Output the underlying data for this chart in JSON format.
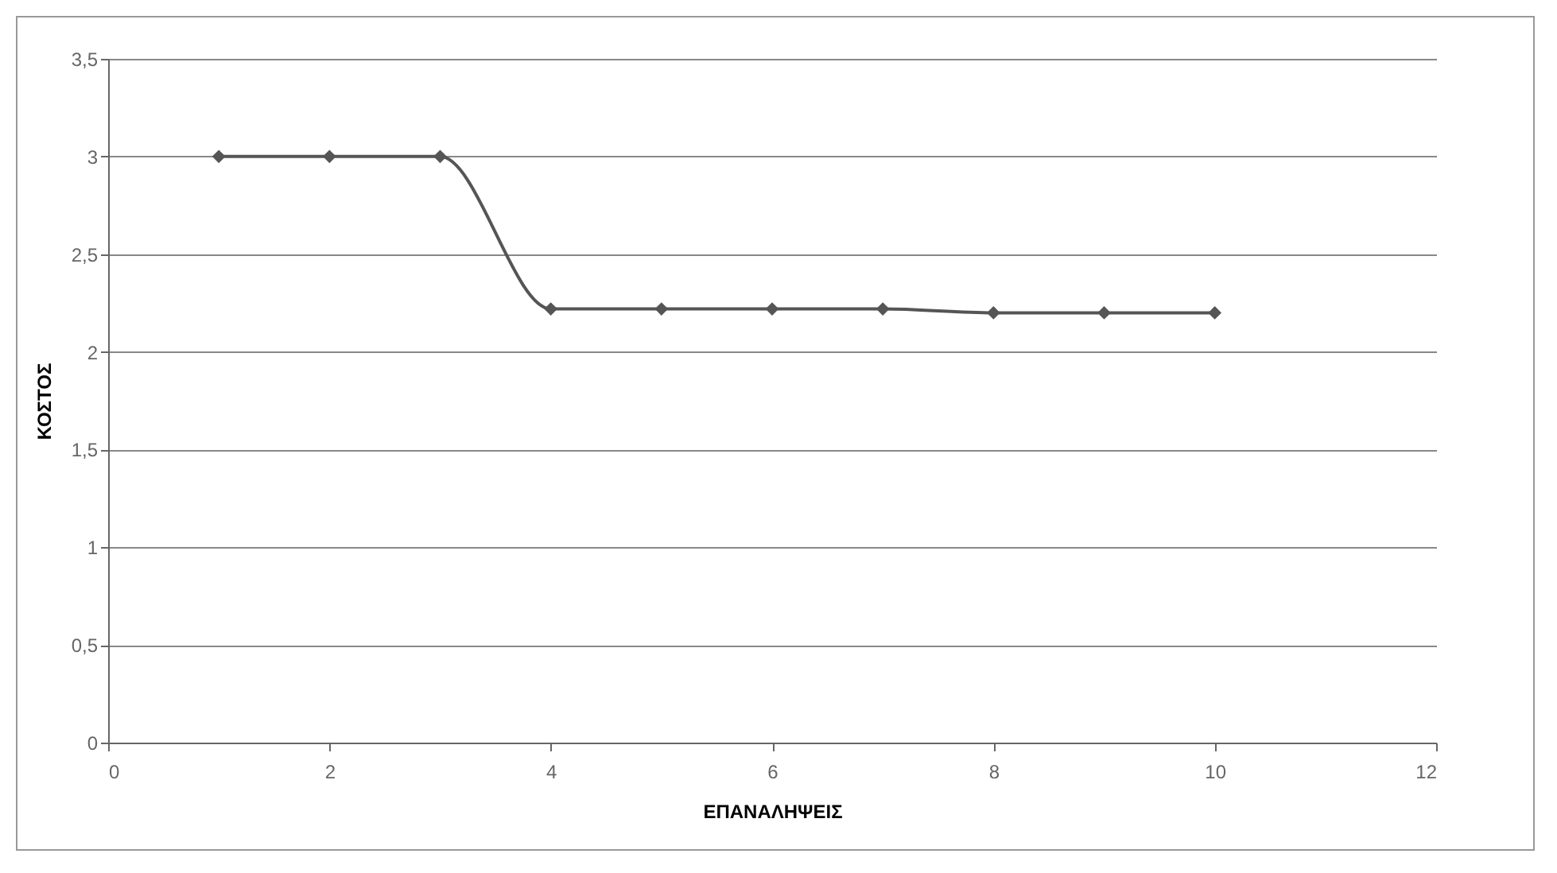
{
  "chart_data": {
    "type": "line",
    "xlabel": "ΕΠΑΝΑΛΗΨΕΙΣ",
    "ylabel": "ΚΟΣΤΟΣ",
    "x": [
      1,
      2,
      3,
      4,
      5,
      6,
      7,
      8,
      9,
      10
    ],
    "series": [
      {
        "color": "#555555",
        "values": [
          3,
          3,
          3,
          2.22,
          2.22,
          2.22,
          2.22,
          2.2,
          2.2,
          2.2
        ]
      }
    ],
    "xlim": [
      0,
      12
    ],
    "xticks": [
      0,
      2,
      4,
      6,
      8,
      10,
      12
    ],
    "ylim": [
      0,
      3.5
    ],
    "yticks": [
      0,
      {
        "value": 0.5,
        "label": "0,5"
      },
      1,
      {
        "value": 1.5,
        "label": "1,5"
      },
      2,
      {
        "value": 2.5,
        "label": "2,5"
      },
      3,
      {
        "value": 3.5,
        "label": "3,5"
      }
    ],
    "grid": "y",
    "marker": "diamond",
    "line_style": "solid"
  }
}
